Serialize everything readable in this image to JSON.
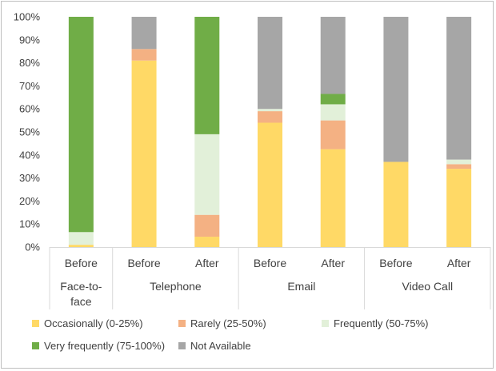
{
  "chart_data": {
    "type": "bar",
    "stacked": true,
    "ylim": [
      0,
      100
    ],
    "y_ticks": [
      "0%",
      "10%",
      "20%",
      "30%",
      "40%",
      "50%",
      "60%",
      "70%",
      "80%",
      "90%",
      "100%"
    ],
    "grid": false,
    "legend_position": "bottom",
    "categories": [
      {
        "label": "Before",
        "group": "Face-to-face"
      },
      {
        "label": "Before",
        "group": "Telephone"
      },
      {
        "label": "After",
        "group": "Telephone"
      },
      {
        "label": "Before",
        "group": "Email"
      },
      {
        "label": "After",
        "group": "Email"
      },
      {
        "label": "Before",
        "group": "Video Call"
      },
      {
        "label": "After",
        "group": "Video Call"
      }
    ],
    "groups": [
      {
        "name": "Face-to-\nface",
        "span": 1
      },
      {
        "name": "Telephone",
        "span": 2
      },
      {
        "name": "Email",
        "span": 2
      },
      {
        "name": "Video Call",
        "span": 2
      }
    ],
    "series": [
      {
        "name": "Occasionally (0-25%)",
        "color": "#ffd966",
        "values": [
          1,
          81,
          4.5,
          54,
          42.5,
          37,
          34
        ]
      },
      {
        "name": "Rarely (25-50%)",
        "color": "#f4b183",
        "values": [
          0,
          5,
          9.5,
          5,
          12.5,
          0,
          2
        ]
      },
      {
        "name": "Frequently (50-75%)",
        "color": "#e2f0d9",
        "values": [
          5.5,
          0,
          35,
          1,
          7,
          0,
          2
        ]
      },
      {
        "name": "Very frequently (75-100%)",
        "color": "#70ad47",
        "values": [
          93.5,
          0,
          51,
          0,
          4.5,
          0,
          0
        ]
      },
      {
        "name": "Not Available",
        "color": "#a6a6a6",
        "values": [
          0,
          14,
          0,
          40,
          33.5,
          63,
          62
        ]
      }
    ]
  }
}
